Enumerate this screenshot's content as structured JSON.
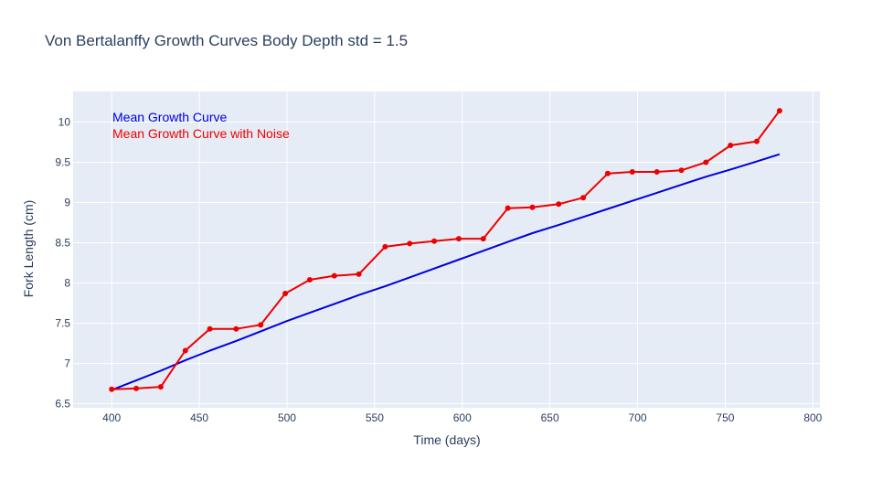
{
  "chart_data": {
    "type": "line",
    "title": "Von Bertalanffy Growth Curves Body Depth std = 1.5",
    "xlabel": "Time (days)",
    "ylabel": "Fork Length (cm)",
    "xlim": [
      378,
      804
    ],
    "ylim": [
      6.45,
      10.38
    ],
    "xticks": [
      400,
      450,
      500,
      550,
      600,
      650,
      700,
      750,
      800
    ],
    "yticks": [
      6.5,
      7,
      7.5,
      8,
      8.5,
      9,
      9.5,
      10
    ],
    "ytick_labels": [
      "6.5",
      "7",
      "7.5",
      "8",
      "8.5",
      "9",
      "9.5",
      "10"
    ],
    "grid": true,
    "legend_placement": "top-left",
    "series": [
      {
        "name": "Mean Growth Curve",
        "color": "#0000dd",
        "mode": "lines",
        "x": [
          400,
          414,
          428,
          442,
          456,
          471,
          485,
          499,
          513,
          527,
          541,
          556,
          570,
          584,
          598,
          612,
          626,
          640,
          655,
          669,
          683,
          697,
          711,
          725,
          739,
          753,
          768,
          781
        ],
        "y": [
          6.67,
          6.79,
          6.91,
          7.04,
          7.16,
          7.28,
          7.4,
          7.52,
          7.63,
          7.74,
          7.85,
          7.96,
          8.07,
          8.18,
          8.29,
          8.4,
          8.51,
          8.62,
          8.72,
          8.82,
          8.92,
          9.02,
          9.12,
          9.22,
          9.32,
          9.41,
          9.51,
          9.6
        ]
      },
      {
        "name": "Mean Growth Curve with Noise",
        "color": "#ee0000",
        "mode": "lines+markers",
        "x": [
          400,
          414,
          428,
          442,
          456,
          471,
          485,
          499,
          513,
          527,
          541,
          556,
          570,
          584,
          598,
          612,
          626,
          640,
          655,
          669,
          683,
          697,
          711,
          725,
          739,
          753,
          768,
          781
        ],
        "y": [
          6.68,
          6.69,
          6.71,
          7.16,
          7.43,
          7.43,
          7.48,
          7.87,
          8.04,
          8.09,
          8.11,
          8.45,
          8.49,
          8.52,
          8.55,
          8.55,
          8.93,
          8.94,
          8.98,
          9.06,
          9.36,
          9.38,
          9.38,
          9.4,
          9.5,
          9.71,
          9.76,
          10.14
        ]
      }
    ]
  }
}
